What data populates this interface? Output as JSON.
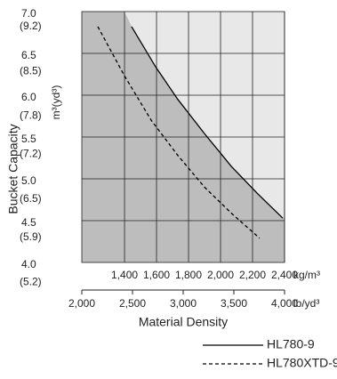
{
  "chart_data": {
    "type": "line",
    "y_label": "Bucket Capacity",
    "y_unit": "m³(yd³)",
    "x_label": "Material Density",
    "x_unit": "kg/m³",
    "x2_unit": "lb/yd³",
    "series": [
      {
        "name": "HL780-9",
        "color": "#000000",
        "dash": "solid",
        "x": [
          1444,
          1594,
          1733,
          1900,
          2067,
          2233,
          2389
        ],
        "values": [
          6.82,
          6.34,
          5.95,
          5.54,
          5.15,
          4.82,
          4.53
        ]
      },
      {
        "name": "HL780XTD-9",
        "color": "#000000",
        "dash": "dashed",
        "x": [
          1233,
          1400,
          1567,
          1733,
          1900,
          2067,
          2244
        ],
        "values": [
          6.82,
          6.23,
          5.7,
          5.28,
          4.9,
          4.59,
          4.29
        ]
      }
    ],
    "xlim": [
      1133,
      2400
    ],
    "xticks": [
      {
        "value": 1400,
        "label": "1,400"
      },
      {
        "value": 1600,
        "label": "1,600"
      },
      {
        "value": 1800,
        "label": "1,800"
      },
      {
        "value": 2000,
        "label": "2,000"
      },
      {
        "value": 2200,
        "label": "2,200"
      },
      {
        "value": 2400,
        "label": "2,400"
      }
    ],
    "x2lim": [
      2000,
      4000
    ],
    "x2ticks": [
      {
        "value": 2000,
        "label": "2,000"
      },
      {
        "value": 2500,
        "label": "2,500"
      },
      {
        "value": 3000,
        "label": "3,000"
      },
      {
        "value": 3500,
        "label": "3,500"
      },
      {
        "value": 4000,
        "label": "4,000"
      }
    ],
    "ylim": [
      4.0,
      7.0
    ],
    "yticks": [
      {
        "value": 7.0,
        "label": "7.0"
      },
      {
        "value": 6.5,
        "label": "6.5"
      },
      {
        "value": 6.0,
        "label": "6.0"
      },
      {
        "value": 5.5,
        "label": "5.5"
      },
      {
        "value": 5.0,
        "label": "5.0"
      },
      {
        "value": 4.5,
        "label": "4.5"
      },
      {
        "value": 4.0,
        "label": "4.0"
      }
    ],
    "y2lim": [
      5.232,
      9.156
    ],
    "y2ticks": [
      {
        "value": 9.2,
        "label": "(9.2)"
      },
      {
        "value": 8.5,
        "label": "(8.5)"
      },
      {
        "value": 7.8,
        "label": "(7.8)"
      },
      {
        "value": 7.2,
        "label": "(7.2)"
      },
      {
        "value": 6.5,
        "label": "(6.5)"
      },
      {
        "value": 5.9,
        "label": "(5.9)"
      },
      {
        "value": 5.2,
        "label": "(5.2)"
      }
    ],
    "grid": true
  }
}
